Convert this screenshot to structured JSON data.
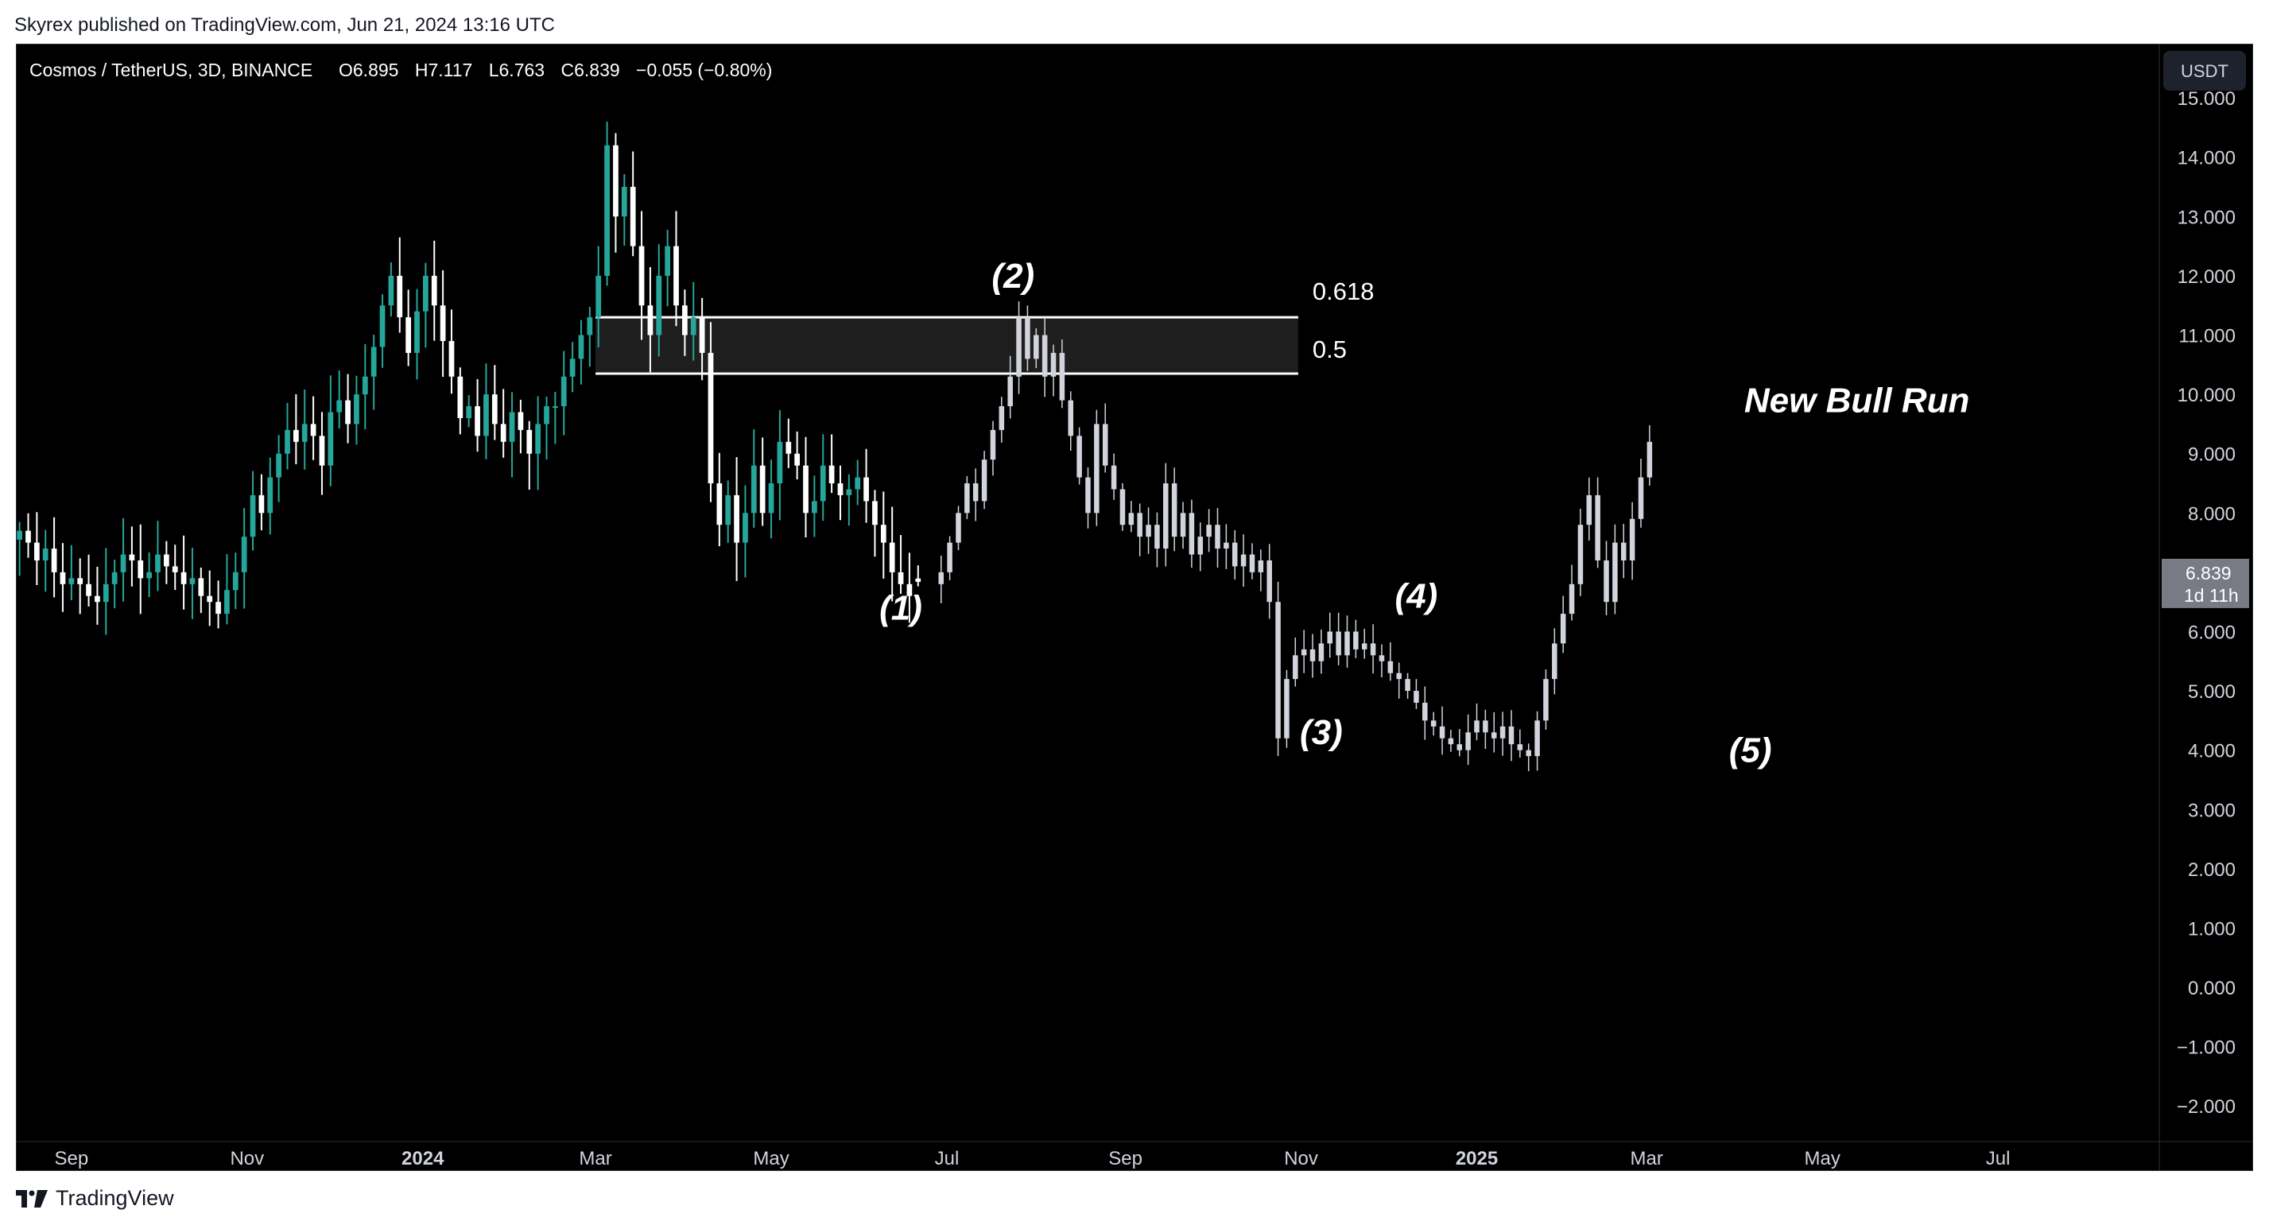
{
  "publisher_line": "Skyrex published on TradingView.com, Jun 21, 2024 13:16 UTC",
  "brand": {
    "name": "TradingView",
    "icon": "tradingview-logo-icon"
  },
  "currency_button": "USDT",
  "legend": {
    "symbol": "Cosmos / TetherUS, 3D, BINANCE",
    "open_label": "O",
    "open": "6.895",
    "high_label": "H",
    "high": "7.117",
    "low_label": "L",
    "low": "6.763",
    "close_label": "C",
    "close": "6.839",
    "change": "−0.055 (−0.80%)"
  },
  "price_badge": {
    "price": "6.839",
    "countdown": "1d 11h"
  },
  "colors": {
    "background": "#000000",
    "up": "#26a69a",
    "down": "#ffffff",
    "projection": "#d1d4dc",
    "zone_fill": "#1e1e1e",
    "axis_text": "#d1d4dc",
    "annotation_text": "#ffffff",
    "badge": "#787b86"
  },
  "chart_data": {
    "type": "candlestick",
    "ylim": [
      -2.6,
      15.9
    ],
    "xlim": [
      "2023-08-13",
      "2025-08-26"
    ],
    "y_ticks": [
      15,
      14,
      13,
      12,
      11,
      10,
      9,
      8,
      7,
      6,
      5,
      4,
      3,
      2,
      1,
      0,
      -1,
      -2
    ],
    "y_tick_labels": [
      "15.000",
      "14.000",
      "13.000",
      "12.000",
      "11.000",
      "10.000",
      "9.000",
      "8.000",
      "7.000",
      "6.000",
      "5.000",
      "4.000",
      "3.000",
      "2.000",
      "1.000",
      "0.000",
      "−1.000",
      "−2.000"
    ],
    "x_ticks": [
      {
        "date": "2023-09-01",
        "label": "Sep",
        "bold": false
      },
      {
        "date": "2023-11-01",
        "label": "Nov",
        "bold": false
      },
      {
        "date": "2024-01-01",
        "label": "2024",
        "bold": true
      },
      {
        "date": "2024-03-01",
        "label": "Mar",
        "bold": false
      },
      {
        "date": "2024-05-01",
        "label": "May",
        "bold": false
      },
      {
        "date": "2024-07-01",
        "label": "Jul",
        "bold": false
      },
      {
        "date": "2024-09-01",
        "label": "Sep",
        "bold": false
      },
      {
        "date": "2024-11-01",
        "label": "Nov",
        "bold": false
      },
      {
        "date": "2025-01-01",
        "label": "2025",
        "bold": true
      },
      {
        "date": "2025-03-01",
        "label": "Mar",
        "bold": false
      },
      {
        "date": "2025-05-01",
        "label": "May",
        "bold": false
      },
      {
        "date": "2025-07-01",
        "label": "Jul",
        "bold": false
      }
    ],
    "candles": {
      "start_date": "2023-08-14",
      "step_days": 3,
      "close_path": [
        7.7,
        7.5,
        7.2,
        7.4,
        7.0,
        6.8,
        6.9,
        6.8,
        6.6,
        6.5,
        6.8,
        7.0,
        7.3,
        7.2,
        6.9,
        7.0,
        7.3,
        7.1,
        7.0,
        6.8,
        6.9,
        6.6,
        6.5,
        6.3,
        6.7,
        7.0,
        7.6,
        8.3,
        8.0,
        8.6,
        9.0,
        9.4,
        9.2,
        9.5,
        9.3,
        8.8,
        9.7,
        9.9,
        9.5,
        10.0,
        10.3,
        10.8,
        11.5,
        12.0,
        11.3,
        10.7,
        11.4,
        12.0,
        11.5,
        10.9,
        10.3,
        9.6,
        9.8,
        9.3,
        10.0,
        9.5,
        9.2,
        9.7,
        9.4,
        9.0,
        9.5,
        9.8,
        9.8,
        10.3,
        10.6,
        11.0,
        11.3,
        12.0,
        14.2,
        13.0,
        13.5,
        12.5,
        11.5,
        11.0,
        12.0,
        12.5,
        11.5,
        11.0,
        11.3,
        10.7,
        8.5,
        7.8,
        8.3,
        7.5,
        8.0,
        8.8,
        8.0,
        8.5,
        9.2,
        9.0,
        8.8,
        8.0,
        8.2,
        8.8,
        8.5,
        8.3,
        8.4,
        8.6,
        8.2,
        7.8,
        7.5,
        7.0,
        6.8,
        6.6,
        7.0
      ],
      "last": {
        "open": 6.895,
        "high": 7.117,
        "low": 6.763,
        "close": 6.839
      }
    },
    "projection": {
      "start_date": "2024-06-26",
      "step_days": 3,
      "path": [
        6.8,
        7.0,
        7.5,
        8.0,
        8.5,
        8.2,
        8.9,
        9.4,
        9.8,
        10.3,
        11.3,
        10.6,
        11.0,
        10.3,
        10.7,
        9.9,
        9.3,
        8.6,
        8.0,
        9.5,
        8.8,
        8.4,
        7.8,
        8.0,
        7.6,
        7.8,
        7.4,
        8.5,
        7.6,
        8.0,
        7.3,
        7.6,
        7.8,
        7.4,
        7.5,
        7.1,
        7.3,
        7.0,
        7.2,
        6.5,
        4.2,
        5.2,
        5.6,
        5.7,
        5.5,
        5.8,
        6.0,
        5.6,
        6.0,
        5.7,
        5.8,
        5.6,
        5.5,
        5.3,
        5.2,
        5.0,
        4.8,
        4.5,
        4.4,
        4.2,
        4.1,
        4.0,
        4.3,
        4.5,
        4.3,
        4.2,
        4.4,
        4.1,
        4.0,
        3.9,
        4.5,
        5.2,
        5.8,
        6.3,
        6.8,
        7.8,
        8.3,
        7.2,
        6.5,
        7.5,
        7.2,
        7.9,
        8.6,
        9.2
      ]
    },
    "zone": {
      "top": 11.3,
      "bottom": 10.35,
      "start_date": "2024-03-01",
      "end_date": "2024-10-31",
      "labels": [
        "0.618",
        "0.5"
      ]
    },
    "annotations": [
      {
        "text": "(1)",
        "date": "2024-06-15",
        "price": 6.2,
        "italic": true
      },
      {
        "text": "(2)",
        "date": "2024-07-24",
        "price": 11.8,
        "italic": true
      },
      {
        "text": "(3)",
        "date": "2024-11-08",
        "price": 4.1,
        "italic": true
      },
      {
        "text": "(4)",
        "date": "2024-12-11",
        "price": 6.4,
        "italic": true
      },
      {
        "text": "(5)",
        "date": "2025-04-06",
        "price": 3.8,
        "italic": true
      },
      {
        "text": "New Bull Run",
        "date": "2025-05-13",
        "price": 9.7,
        "italic": true
      }
    ]
  }
}
